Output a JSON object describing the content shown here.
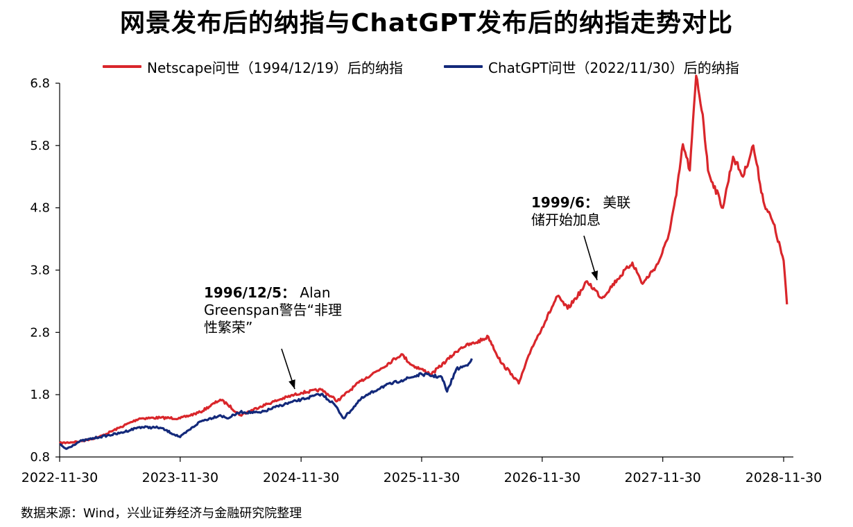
{
  "title": "网景发布后的纳指与ChatGPT发布后的纳指走势对比",
  "source": "数据来源：Wind，兴业证券经济与金融研究院整理",
  "chart_data": {
    "type": "line",
    "xlabel": "",
    "ylabel": "",
    "ylim": [
      0.8,
      6.8
    ],
    "yticks": [
      0.8,
      1.8,
      2.8,
      3.8,
      4.8,
      5.8,
      6.8
    ],
    "ytick_labels": [
      "0.8",
      "1.8",
      "2.8",
      "3.8",
      "4.8",
      "5.8",
      "6.8"
    ],
    "xlim": [
      "2022-11-30",
      "2028-11-30"
    ],
    "xticks": [
      "2022-11-30",
      "2023-11-30",
      "2024-11-30",
      "2025-11-30",
      "2026-11-30",
      "2027-11-30",
      "2028-11-30"
    ],
    "legend_position": "top",
    "grid": false,
    "series": [
      {
        "name": "Netscape问世（1994/12/19）后的纳指",
        "color": "#d9262b",
        "x": [
          "2022-11-30",
          "2023-01-30",
          "2023-03-30",
          "2023-05-30",
          "2023-07-30",
          "2023-09-30",
          "2023-11-30",
          "2024-01-30",
          "2024-03-30",
          "2024-04-20",
          "2024-05-30",
          "2024-07-30",
          "2024-09-30",
          "2024-11-30",
          "2025-01-30",
          "2025-03-20",
          "2025-05-30",
          "2025-07-30",
          "2025-09-30",
          "2025-10-30",
          "2025-12-30",
          "2026-03-30",
          "2026-05-15",
          "2026-06-20",
          "2026-07-30",
          "2026-08-30",
          "2026-09-20",
          "2026-10-30",
          "2026-11-30",
          "2027-01-15",
          "2027-02-15",
          "2027-03-30",
          "2027-04-15",
          "2027-05-30",
          "2027-07-15",
          "2027-08-30",
          "2027-09-30",
          "2027-11-15",
          "2027-12-15",
          "2028-01-10",
          "2028-01-30",
          "2028-02-20",
          "2028-03-10",
          "2028-03-30",
          "2028-04-15",
          "2028-05-30",
          "2028-06-30",
          "2028-07-30",
          "2028-08-30",
          "2028-09-30",
          "2028-10-30",
          "2028-11-30",
          "2028-12-10"
        ],
        "values": [
          1.02,
          1.05,
          1.12,
          1.27,
          1.42,
          1.43,
          1.42,
          1.52,
          1.72,
          1.65,
          1.47,
          1.61,
          1.73,
          1.83,
          1.88,
          1.7,
          2.02,
          2.22,
          2.45,
          2.28,
          2.13,
          2.56,
          2.64,
          2.73,
          2.3,
          2.13,
          1.98,
          2.56,
          2.88,
          3.38,
          3.18,
          3.48,
          3.62,
          3.35,
          3.65,
          3.92,
          3.58,
          3.9,
          4.3,
          5.0,
          5.82,
          5.4,
          6.92,
          6.3,
          5.4,
          4.8,
          5.62,
          5.3,
          5.8,
          4.9,
          4.55,
          3.95,
          3.25
        ]
      },
      {
        "name": "ChatGPT问世（2022/11/30）后的纳指",
        "color": "#13297a",
        "x": [
          "2022-11-30",
          "2022-12-20",
          "2023-01-30",
          "2023-03-30",
          "2023-05-30",
          "2023-07-30",
          "2023-09-30",
          "2023-11-30",
          "2024-01-30",
          "2024-03-30",
          "2024-04-20",
          "2024-05-30",
          "2024-07-30",
          "2024-09-30",
          "2024-11-30",
          "2025-01-30",
          "2025-03-10",
          "2025-04-08",
          "2025-05-30",
          "2025-07-30",
          "2025-09-30",
          "2025-11-30",
          "2026-01-30",
          "2026-02-15",
          "2026-03-15",
          "2026-04-15",
          "2026-05-01"
        ],
        "values": [
          1.0,
          0.93,
          1.05,
          1.12,
          1.18,
          1.28,
          1.27,
          1.12,
          1.37,
          1.47,
          1.42,
          1.52,
          1.51,
          1.63,
          1.72,
          1.81,
          1.65,
          1.42,
          1.73,
          1.92,
          2.03,
          2.13,
          2.08,
          1.85,
          2.21,
          2.27,
          2.38
        ]
      }
    ],
    "annotations": [
      {
        "bold": "1996/12/5：",
        "text": " Alan Greenspan警告“非理性繁荣”"
      },
      {
        "bold": "1999/6：",
        "text": " 美联储开始加息"
      }
    ]
  }
}
